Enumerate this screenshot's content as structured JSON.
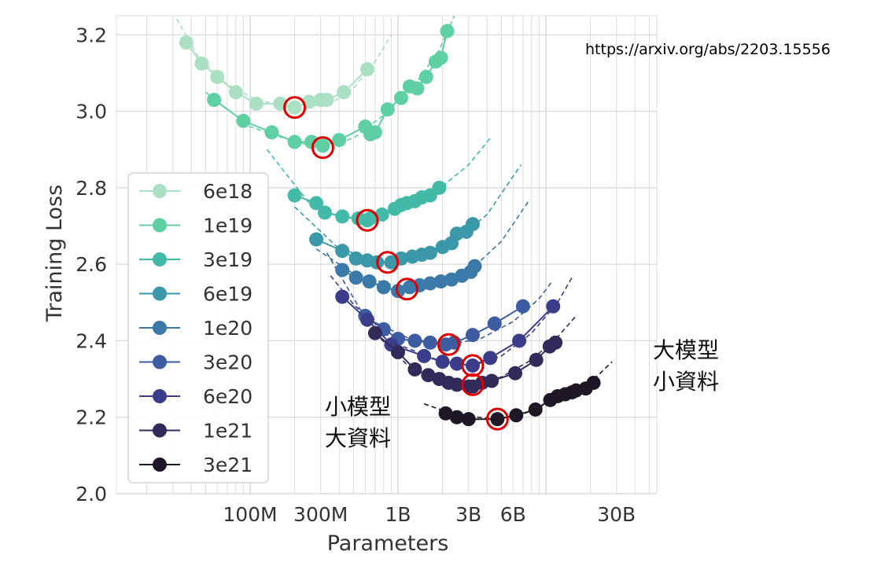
{
  "source_url": "https://arxiv.org/abs/2203.15556",
  "annotations": {
    "small_model": [
      "小模型",
      "大資料"
    ],
    "large_model": [
      "大模型",
      "小資料"
    ]
  },
  "colors": {
    "optimum_marker": "#e00000",
    "grid": "#dcdcdc",
    "axis_text": "#333333"
  },
  "chart_data": {
    "type": "scatter",
    "title": "",
    "xlabel": "Parameters",
    "ylabel": "Training Loss",
    "x_scale": "log",
    "xlim": [
      20000000,
      40000000000
    ],
    "ylim": [
      2.0,
      3.25
    ],
    "x_ticks": [
      {
        "value": 100000000,
        "label": "100M"
      },
      {
        "value": 300000000,
        "label": "300M"
      },
      {
        "value": 1000000000,
        "label": "1B"
      },
      {
        "value": 3000000000,
        "label": "3B"
      },
      {
        "value": 6000000000,
        "label": "6B"
      },
      {
        "value": 30000000000,
        "label": "30B"
      }
    ],
    "y_ticks": [
      {
        "value": 2.0,
        "label": "2.0"
      },
      {
        "value": 2.2,
        "label": "2.2"
      },
      {
        "value": 2.4,
        "label": "2.4"
      },
      {
        "value": 2.6,
        "label": "2.6"
      },
      {
        "value": 2.8,
        "label": "2.8"
      },
      {
        "value": 3.0,
        "label": "3.0"
      },
      {
        "value": 3.2,
        "label": "3.2"
      }
    ],
    "grid": true,
    "legend_position": "left",
    "series": [
      {
        "name": "6e18",
        "color": "#abe0c4",
        "points": [
          [
            37000000,
            3.18
          ],
          [
            47000000,
            3.125
          ],
          [
            60000000,
            3.09
          ],
          [
            80000000,
            3.05
          ],
          [
            110000000,
            3.02
          ],
          [
            160000000,
            3.02
          ],
          [
            200000000,
            3.01
          ],
          [
            250000000,
            3.025
          ],
          [
            300000000,
            3.03
          ],
          [
            330000000,
            3.03
          ],
          [
            430000000,
            3.05
          ],
          [
            620000000,
            3.11
          ]
        ],
        "fit": [
          [
            30000000,
            3.26
          ],
          [
            45000000,
            3.14
          ],
          [
            70000000,
            3.07
          ],
          [
            110000000,
            3.03
          ],
          [
            200000000,
            3.01
          ],
          [
            350000000,
            3.02
          ],
          [
            500000000,
            3.06
          ],
          [
            700000000,
            3.13
          ],
          [
            900000000,
            3.2
          ]
        ],
        "optimum": [
          200000000,
          3.01
        ]
      },
      {
        "name": "1e19",
        "color": "#5fcfa4",
        "points": [
          [
            57000000,
            3.03
          ],
          [
            90000000,
            2.975
          ],
          [
            140000000,
            2.945
          ],
          [
            200000000,
            2.92
          ],
          [
            260000000,
            2.92
          ],
          [
            310000000,
            2.91
          ],
          [
            400000000,
            2.925
          ],
          [
            600000000,
            2.96
          ],
          [
            650000000,
            2.94
          ],
          [
            700000000,
            2.945
          ],
          [
            850000000,
            3.005
          ],
          [
            1050000000,
            3.035
          ],
          [
            1200000000,
            3.065
          ],
          [
            1350000000,
            3.06
          ],
          [
            1550000000,
            3.09
          ],
          [
            1800000000,
            3.13
          ],
          [
            1950000000,
            3.14
          ],
          [
            2150000000,
            3.21
          ]
        ],
        "fit": [
          [
            50000000,
            3.05
          ],
          [
            100000000,
            2.96
          ],
          [
            200000000,
            2.92
          ],
          [
            310000000,
            2.905
          ],
          [
            500000000,
            2.93
          ],
          [
            800000000,
            2.99
          ],
          [
            1300000000,
            3.07
          ],
          [
            1900000000,
            3.16
          ],
          [
            2400000000,
            3.25
          ]
        ],
        "optimum": [
          310000000,
          2.905
        ]
      },
      {
        "name": "3e19",
        "color": "#43b9a8",
        "points": [
          [
            200000000,
            2.78
          ],
          [
            280000000,
            2.76
          ],
          [
            320000000,
            2.735
          ],
          [
            420000000,
            2.725
          ],
          [
            540000000,
            2.72
          ],
          [
            620000000,
            2.715
          ],
          [
            650000000,
            2.72
          ],
          [
            780000000,
            2.73
          ],
          [
            950000000,
            2.745
          ],
          [
            1050000000,
            2.755
          ],
          [
            1150000000,
            2.76
          ],
          [
            1300000000,
            2.765
          ],
          [
            1450000000,
            2.775
          ],
          [
            1650000000,
            2.78
          ],
          [
            1900000000,
            2.8
          ]
        ],
        "fit": [
          [
            130000000,
            2.9
          ],
          [
            250000000,
            2.76
          ],
          [
            400000000,
            2.725
          ],
          [
            620000000,
            2.715
          ],
          [
            1000000000,
            2.745
          ],
          [
            1800000000,
            2.79
          ],
          [
            3000000000,
            2.86
          ],
          [
            4200000000,
            2.93
          ]
        ],
        "optimum": [
          620000000,
          2.715
        ]
      },
      {
        "name": "6e19",
        "color": "#3a98a8",
        "points": [
          [
            280000000,
            2.665
          ],
          [
            420000000,
            2.635
          ],
          [
            520000000,
            2.615
          ],
          [
            620000000,
            2.61
          ],
          [
            720000000,
            2.605
          ],
          [
            900000000,
            2.605
          ],
          [
            1050000000,
            2.615
          ],
          [
            1250000000,
            2.62
          ],
          [
            1450000000,
            2.625
          ],
          [
            1650000000,
            2.63
          ],
          [
            2000000000,
            2.645
          ],
          [
            2300000000,
            2.655
          ],
          [
            2500000000,
            2.68
          ],
          [
            2900000000,
            2.685
          ],
          [
            3200000000,
            2.705
          ]
        ],
        "fit": [
          [
            200000000,
            2.75
          ],
          [
            400000000,
            2.64
          ],
          [
            850000000,
            2.605
          ],
          [
            1500000000,
            2.62
          ],
          [
            2500000000,
            2.665
          ],
          [
            4000000000,
            2.73
          ],
          [
            6000000000,
            2.83
          ],
          [
            6800000000,
            2.86
          ]
        ],
        "optimum": [
          850000000,
          2.605
        ]
      },
      {
        "name": "1e20",
        "color": "#3a79a8",
        "points": [
          [
            420000000,
            2.585
          ],
          [
            520000000,
            2.565
          ],
          [
            640000000,
            2.555
          ],
          [
            800000000,
            2.54
          ],
          [
            1000000000,
            2.53
          ],
          [
            1200000000,
            2.54
          ],
          [
            1400000000,
            2.545
          ],
          [
            1650000000,
            2.55
          ],
          [
            1950000000,
            2.555
          ],
          [
            2300000000,
            2.56
          ],
          [
            2700000000,
            2.57
          ],
          [
            3100000000,
            2.58
          ],
          [
            3300000000,
            2.595
          ]
        ],
        "fit": [
          [
            280000000,
            2.64
          ],
          [
            500000000,
            2.575
          ],
          [
            1150000000,
            2.535
          ],
          [
            2000000000,
            2.555
          ],
          [
            3200000000,
            2.59
          ],
          [
            5000000000,
            2.66
          ],
          [
            7800000000,
            2.77
          ]
        ],
        "optimum": [
          1150000000,
          2.535
        ]
      },
      {
        "name": "3e20",
        "color": "#3d5ca1",
        "points": [
          [
            600000000,
            2.465
          ],
          [
            800000000,
            2.43
          ],
          [
            1000000000,
            2.405
          ],
          [
            1300000000,
            2.4
          ],
          [
            1650000000,
            2.395
          ],
          [
            2100000000,
            2.39
          ],
          [
            2400000000,
            2.395
          ],
          [
            3200000000,
            2.415
          ],
          [
            4500000000,
            2.445
          ],
          [
            7000000000,
            2.49
          ]
        ],
        "fit": [
          [
            330000000,
            2.63
          ],
          [
            600000000,
            2.46
          ],
          [
            1200000000,
            2.405
          ],
          [
            2200000000,
            2.39
          ],
          [
            3600000000,
            2.405
          ],
          [
            6000000000,
            2.45
          ],
          [
            9000000000,
            2.51
          ],
          [
            11000000000,
            2.555
          ]
        ],
        "optimum": [
          2200000000,
          2.39
        ]
      },
      {
        "name": "6e20",
        "color": "#3c3d8a",
        "points": [
          [
            420000000,
            2.515
          ],
          [
            620000000,
            2.455
          ],
          [
            900000000,
            2.39
          ],
          [
            1500000000,
            2.36
          ],
          [
            2000000000,
            2.345
          ],
          [
            2500000000,
            2.34
          ],
          [
            3200000000,
            2.335
          ],
          [
            4200000000,
            2.355
          ],
          [
            6600000000,
            2.4
          ],
          [
            11200000000,
            2.49
          ]
        ],
        "fit": [
          [
            350000000,
            2.57
          ],
          [
            500000000,
            2.495
          ],
          [
            1000000000,
            2.39
          ],
          [
            2000000000,
            2.345
          ],
          [
            3200000000,
            2.335
          ],
          [
            5000000000,
            2.36
          ],
          [
            8000000000,
            2.42
          ],
          [
            12000000000,
            2.5
          ],
          [
            15000000000,
            2.565
          ]
        ],
        "optimum": [
          3200000000,
          2.335
        ]
      },
      {
        "name": "1e21",
        "color": "#322b5a",
        "points": [
          [
            700000000,
            2.42
          ],
          [
            1000000000,
            2.37
          ],
          [
            1300000000,
            2.325
          ],
          [
            1600000000,
            2.31
          ],
          [
            1900000000,
            2.3
          ],
          [
            2200000000,
            2.29
          ],
          [
            2500000000,
            2.285
          ],
          [
            3000000000,
            2.28
          ],
          [
            3200000000,
            2.28
          ],
          [
            3700000000,
            2.29
          ],
          [
            4300000000,
            2.295
          ],
          [
            6200000000,
            2.315
          ],
          [
            8600000000,
            2.35
          ],
          [
            10600000000,
            2.385
          ],
          [
            11600000000,
            2.395
          ]
        ],
        "fit": [
          [
            700000000,
            2.42
          ],
          [
            1200000000,
            2.33
          ],
          [
            2000000000,
            2.29
          ],
          [
            3200000000,
            2.285
          ],
          [
            5000000000,
            2.305
          ],
          [
            8000000000,
            2.35
          ],
          [
            12000000000,
            2.41
          ],
          [
            16000000000,
            2.465
          ]
        ],
        "optimum": [
          3200000000,
          2.285
        ]
      },
      {
        "name": "3e21",
        "color": "#1e1826",
        "points": [
          [
            2100000000,
            2.21
          ],
          [
            2500000000,
            2.2
          ],
          [
            3000000000,
            2.195
          ],
          [
            4700000000,
            2.195
          ],
          [
            6300000000,
            2.205
          ],
          [
            8500000000,
            2.22
          ],
          [
            10700000000,
            2.245
          ],
          [
            12000000000,
            2.255
          ],
          [
            13500000000,
            2.26
          ],
          [
            15000000000,
            2.265
          ],
          [
            16000000000,
            2.27
          ],
          [
            18600000000,
            2.275
          ],
          [
            21000000000,
            2.29
          ]
        ],
        "fit": [
          [
            1500000000,
            2.235
          ],
          [
            2500000000,
            2.205
          ],
          [
            4700000000,
            2.195
          ],
          [
            8000000000,
            2.215
          ],
          [
            13000000000,
            2.255
          ],
          [
            20000000000,
            2.29
          ],
          [
            28000000000,
            2.345
          ]
        ],
        "optimum": [
          4700000000,
          2.195
        ]
      }
    ]
  }
}
